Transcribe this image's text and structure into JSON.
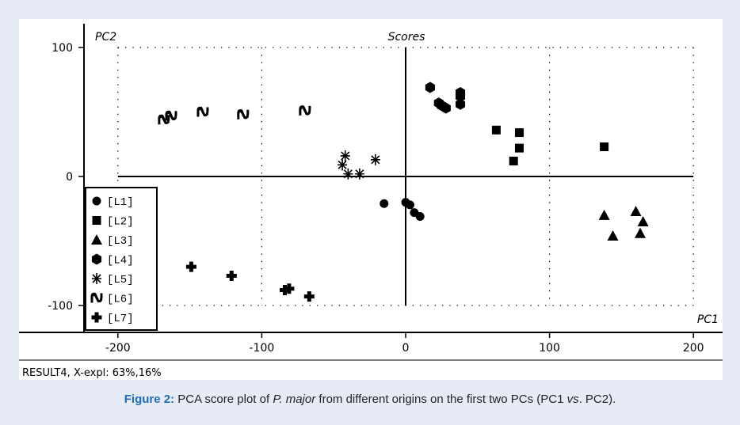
{
  "chart_data": {
    "type": "scatter",
    "title": "Scores",
    "xlabel": "PC1",
    "ylabel": "PC2",
    "xlim": [
      -230,
      210
    ],
    "ylim": [
      -100,
      105
    ],
    "xticks": [
      -200,
      -100,
      0,
      100,
      200
    ],
    "yticks": [
      100,
      0,
      -100
    ],
    "grid": "dotted",
    "legend_position": "bottom-left",
    "footer": "RESULT4, X-expl: 63%,16%",
    "series": [
      {
        "name": "[L1]",
        "marker": "circle",
        "points": [
          [
            -15,
            -21
          ],
          [
            0,
            -20
          ],
          [
            3,
            -22
          ],
          [
            6,
            -28
          ],
          [
            10,
            -31
          ]
        ]
      },
      {
        "name": "[L2]",
        "marker": "square",
        "points": [
          [
            63,
            36
          ],
          [
            79,
            34
          ],
          [
            79,
            22
          ],
          [
            75,
            12
          ],
          [
            138,
            23
          ]
        ]
      },
      {
        "name": "[L3]",
        "marker": "triangle",
        "points": [
          [
            138,
            -30
          ],
          [
            144,
            -46
          ],
          [
            160,
            -27
          ],
          [
            165,
            -35
          ],
          [
            163,
            -44
          ]
        ]
      },
      {
        "name": "[L4]",
        "marker": "hexagon",
        "points": [
          [
            17,
            69
          ],
          [
            23,
            57
          ],
          [
            25,
            55
          ],
          [
            28,
            53
          ],
          [
            38,
            65
          ],
          [
            38,
            62
          ],
          [
            38,
            56
          ]
        ]
      },
      {
        "name": "[L5]",
        "marker": "star",
        "points": [
          [
            -42,
            16
          ],
          [
            -44,
            9
          ],
          [
            -40,
            2
          ],
          [
            -32,
            2
          ],
          [
            -21,
            13
          ]
        ]
      },
      {
        "name": "[L6]",
        "marker": "n-glyph",
        "points": [
          [
            -168,
            44
          ],
          [
            -163,
            47
          ],
          [
            -141,
            50
          ],
          [
            -113,
            48
          ],
          [
            -70,
            51
          ]
        ]
      },
      {
        "name": "[L7]",
        "marker": "cross",
        "points": [
          [
            -149,
            -70
          ],
          [
            -121,
            -77
          ],
          [
            -84,
            -88
          ],
          [
            -81,
            -87
          ],
          [
            -67,
            -93
          ]
        ]
      }
    ]
  },
  "caption": {
    "label": "Figure 2:",
    "text_part1": " PCA score plot of ",
    "species": "P. major",
    "text_part2": " from different origins on the first two PCs (PC1 ",
    "vs": "vs",
    "text_part3": ". PC2)."
  }
}
